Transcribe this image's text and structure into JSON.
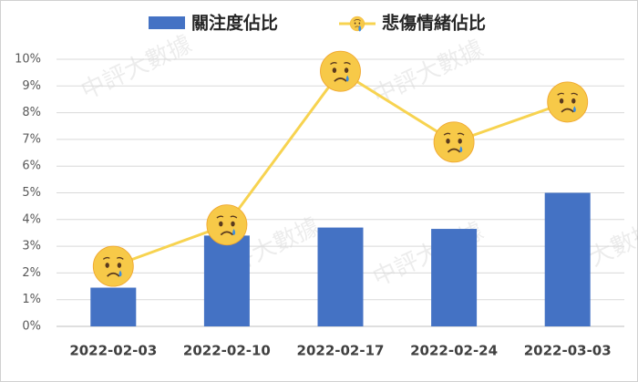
{
  "chart_data": {
    "type": "combo",
    "watermark": "中評大數據",
    "categories": [
      "2022-02-03",
      "2022-02-10",
      "2022-02-17",
      "2022-02-24",
      "2022-03-03"
    ],
    "series": [
      {
        "name": "關注度佔比",
        "type": "bar",
        "color": "#4472c4",
        "values": [
          1.45,
          3.4,
          3.7,
          3.65,
          5.0
        ]
      },
      {
        "name": "悲傷情緒佔比",
        "type": "line",
        "color": "#f7d350",
        "values": [
          2.25,
          3.8,
          9.55,
          6.9,
          8.4
        ]
      }
    ],
    "ylim": [
      0,
      10
    ],
    "yticks": [
      {
        "value": 0,
        "label": "0%"
      },
      {
        "value": 1,
        "label": "1%"
      },
      {
        "value": 2,
        "label": "2%"
      },
      {
        "value": 3,
        "label": "3%"
      },
      {
        "value": 4,
        "label": "4%"
      },
      {
        "value": 5,
        "label": "5%"
      },
      {
        "value": 6,
        "label": "6%"
      },
      {
        "value": 7,
        "label": "7%"
      },
      {
        "value": 8,
        "label": "8%"
      },
      {
        "value": 9,
        "label": "9%"
      },
      {
        "value": 10,
        "label": "10%"
      }
    ],
    "grid": true,
    "legend": "top"
  }
}
